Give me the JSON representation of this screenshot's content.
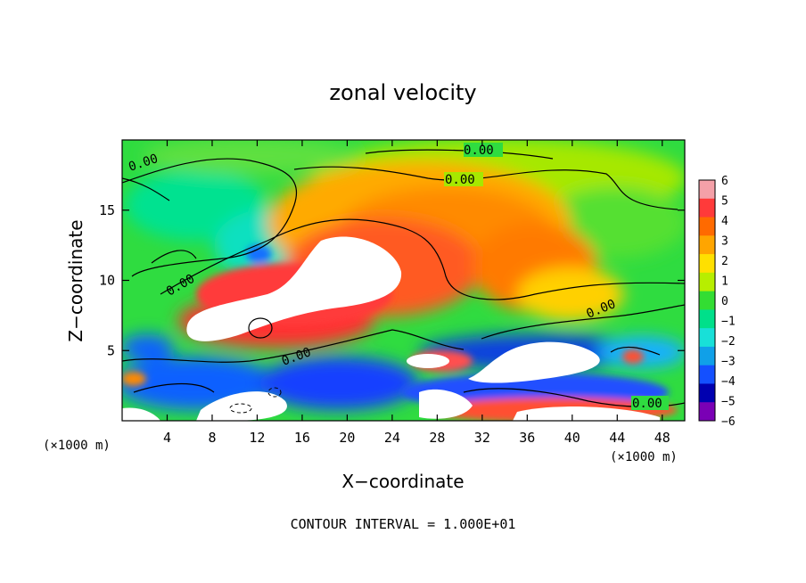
{
  "chart_data": {
    "type": "heatmap",
    "title": "zonal velocity",
    "xlabel": "X−coordinate",
    "ylabel": "Z−coordinate",
    "x_unit_label": "(×1000 m)",
    "y_unit_label": "(×1000 m)",
    "xlim": [
      0,
      50
    ],
    "ylim": [
      0,
      20
    ],
    "x_ticks": [
      4,
      8,
      12,
      16,
      20,
      24,
      28,
      32,
      36,
      40,
      44,
      48
    ],
    "y_ticks": [
      5,
      10,
      15
    ],
    "colorbar": {
      "labels": [
        "6",
        "5",
        "4",
        "3",
        "2",
        "1",
        "0",
        "−1",
        "−2",
        "−3",
        "−4",
        "−5",
        "−6"
      ],
      "colors": [
        "#f4a0a8",
        "#ff3a3a",
        "#ff6a00",
        "#ffa500",
        "#ffe000",
        "#b7ee00",
        "#33dd33",
        "#00e08a",
        "#18e0d8",
        "#10a0e8",
        "#1450ff",
        "#0000b0",
        "#7a00b5"
      ]
    },
    "contour_labels": [
      "0.00",
      "0.00",
      "0.00",
      "0.00",
      "0.00",
      "0.00",
      "0.00"
    ],
    "footer": "CONTOUR INTERVAL = 1.000E+01"
  }
}
